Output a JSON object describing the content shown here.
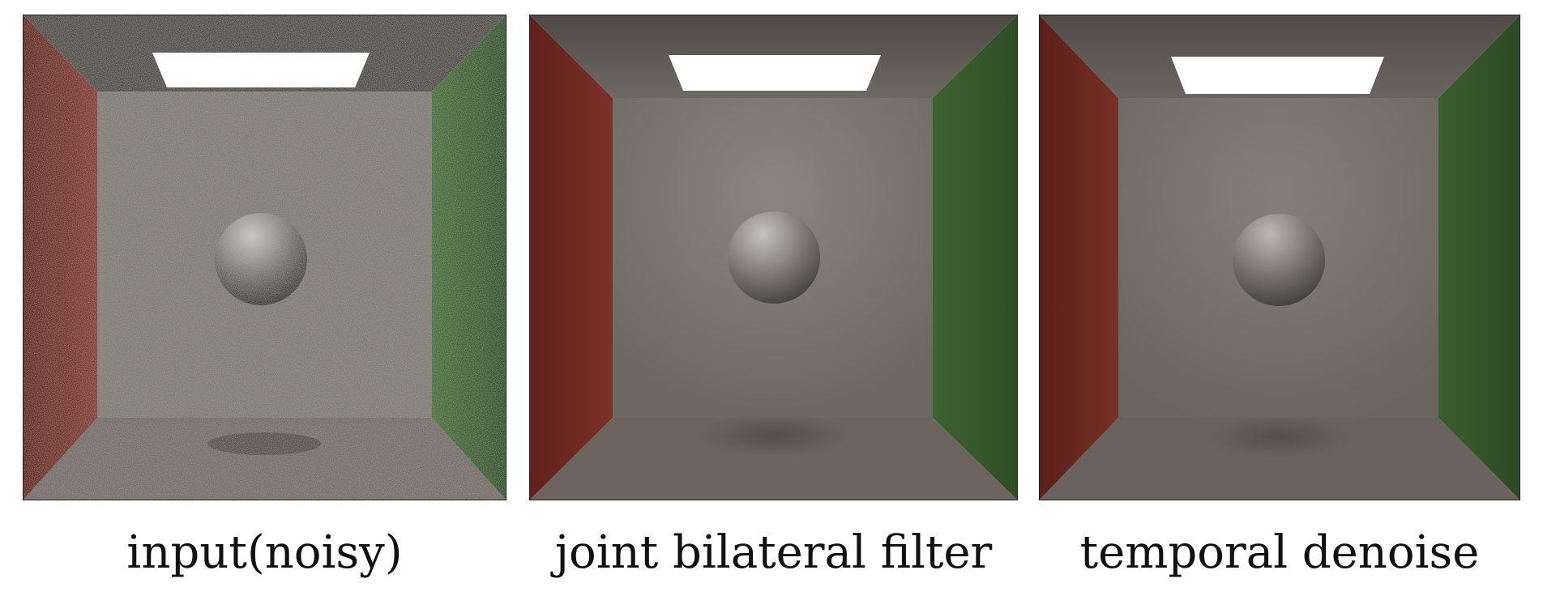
{
  "panels": [
    {
      "caption": "input(noisy)",
      "render_style": "noisy"
    },
    {
      "caption": "joint bilateral filter",
      "render_style": "filtered"
    },
    {
      "caption": "temporal denoise",
      "render_style": "smooth"
    }
  ],
  "colors": {
    "red_wall": "#7a2a22",
    "green_wall": "#3c5a2e",
    "back_wall": "#7a736c",
    "floor": "#6b625e",
    "ceiling": "#5a544f",
    "light": "#ffffff",
    "sphere": "#8a8580"
  }
}
